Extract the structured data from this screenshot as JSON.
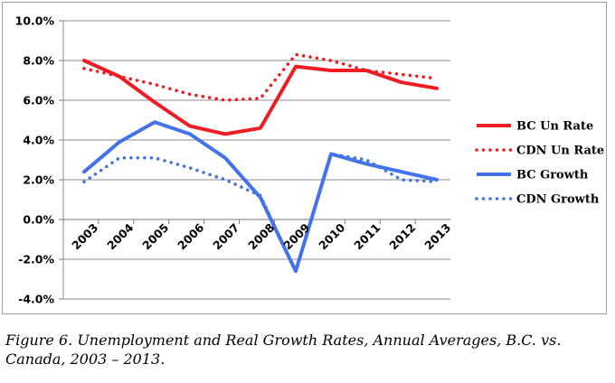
{
  "chart_data": {
    "type": "line",
    "categories": [
      "2003",
      "2004",
      "2005",
      "2006",
      "2007",
      "2008",
      "2009",
      "2010",
      "2011",
      "2012",
      "2013"
    ],
    "ylim": [
      -4,
      10
    ],
    "yticks": [
      -4,
      -2,
      0,
      2,
      4,
      6,
      8,
      10
    ],
    "ytick_labels": [
      "-4.0%",
      "-2.0%",
      "0.0%",
      "2.0%",
      "4.0%",
      "6.0%",
      "8.0%",
      "10.0%"
    ],
    "grid": true,
    "legend_position": "right",
    "series": [
      {
        "name": "BC Un Rate",
        "color": "#ee1c24",
        "style": "solid",
        "values": [
          8.0,
          7.2,
          5.9,
          4.7,
          4.3,
          4.6,
          7.7,
          7.5,
          7.5,
          6.9,
          6.6
        ]
      },
      {
        "name": "CDN Un Rate",
        "color": "#ee1c24",
        "style": "dotted",
        "values": [
          7.6,
          7.2,
          6.8,
          6.3,
          6.0,
          6.1,
          8.3,
          8.0,
          7.5,
          7.3,
          7.1
        ]
      },
      {
        "name": "BC Growth",
        "color": "#4472e8",
        "style": "solid",
        "values": [
          2.4,
          3.9,
          4.9,
          4.3,
          3.1,
          1.1,
          -2.6,
          3.3,
          2.8,
          2.4,
          2.0
        ]
      },
      {
        "name": "CDN Growth",
        "color": "#4472e8",
        "style": "dotted",
        "values": [
          1.9,
          3.1,
          3.1,
          2.6,
          2.0,
          1.2,
          -2.6,
          3.3,
          3.0,
          2.0,
          1.9
        ]
      }
    ]
  },
  "caption": {
    "text": "Figure 6.  Unemployment and Real Growth Rates, Annual Averages, B.C. vs. Canada, 2003 – 2013."
  }
}
